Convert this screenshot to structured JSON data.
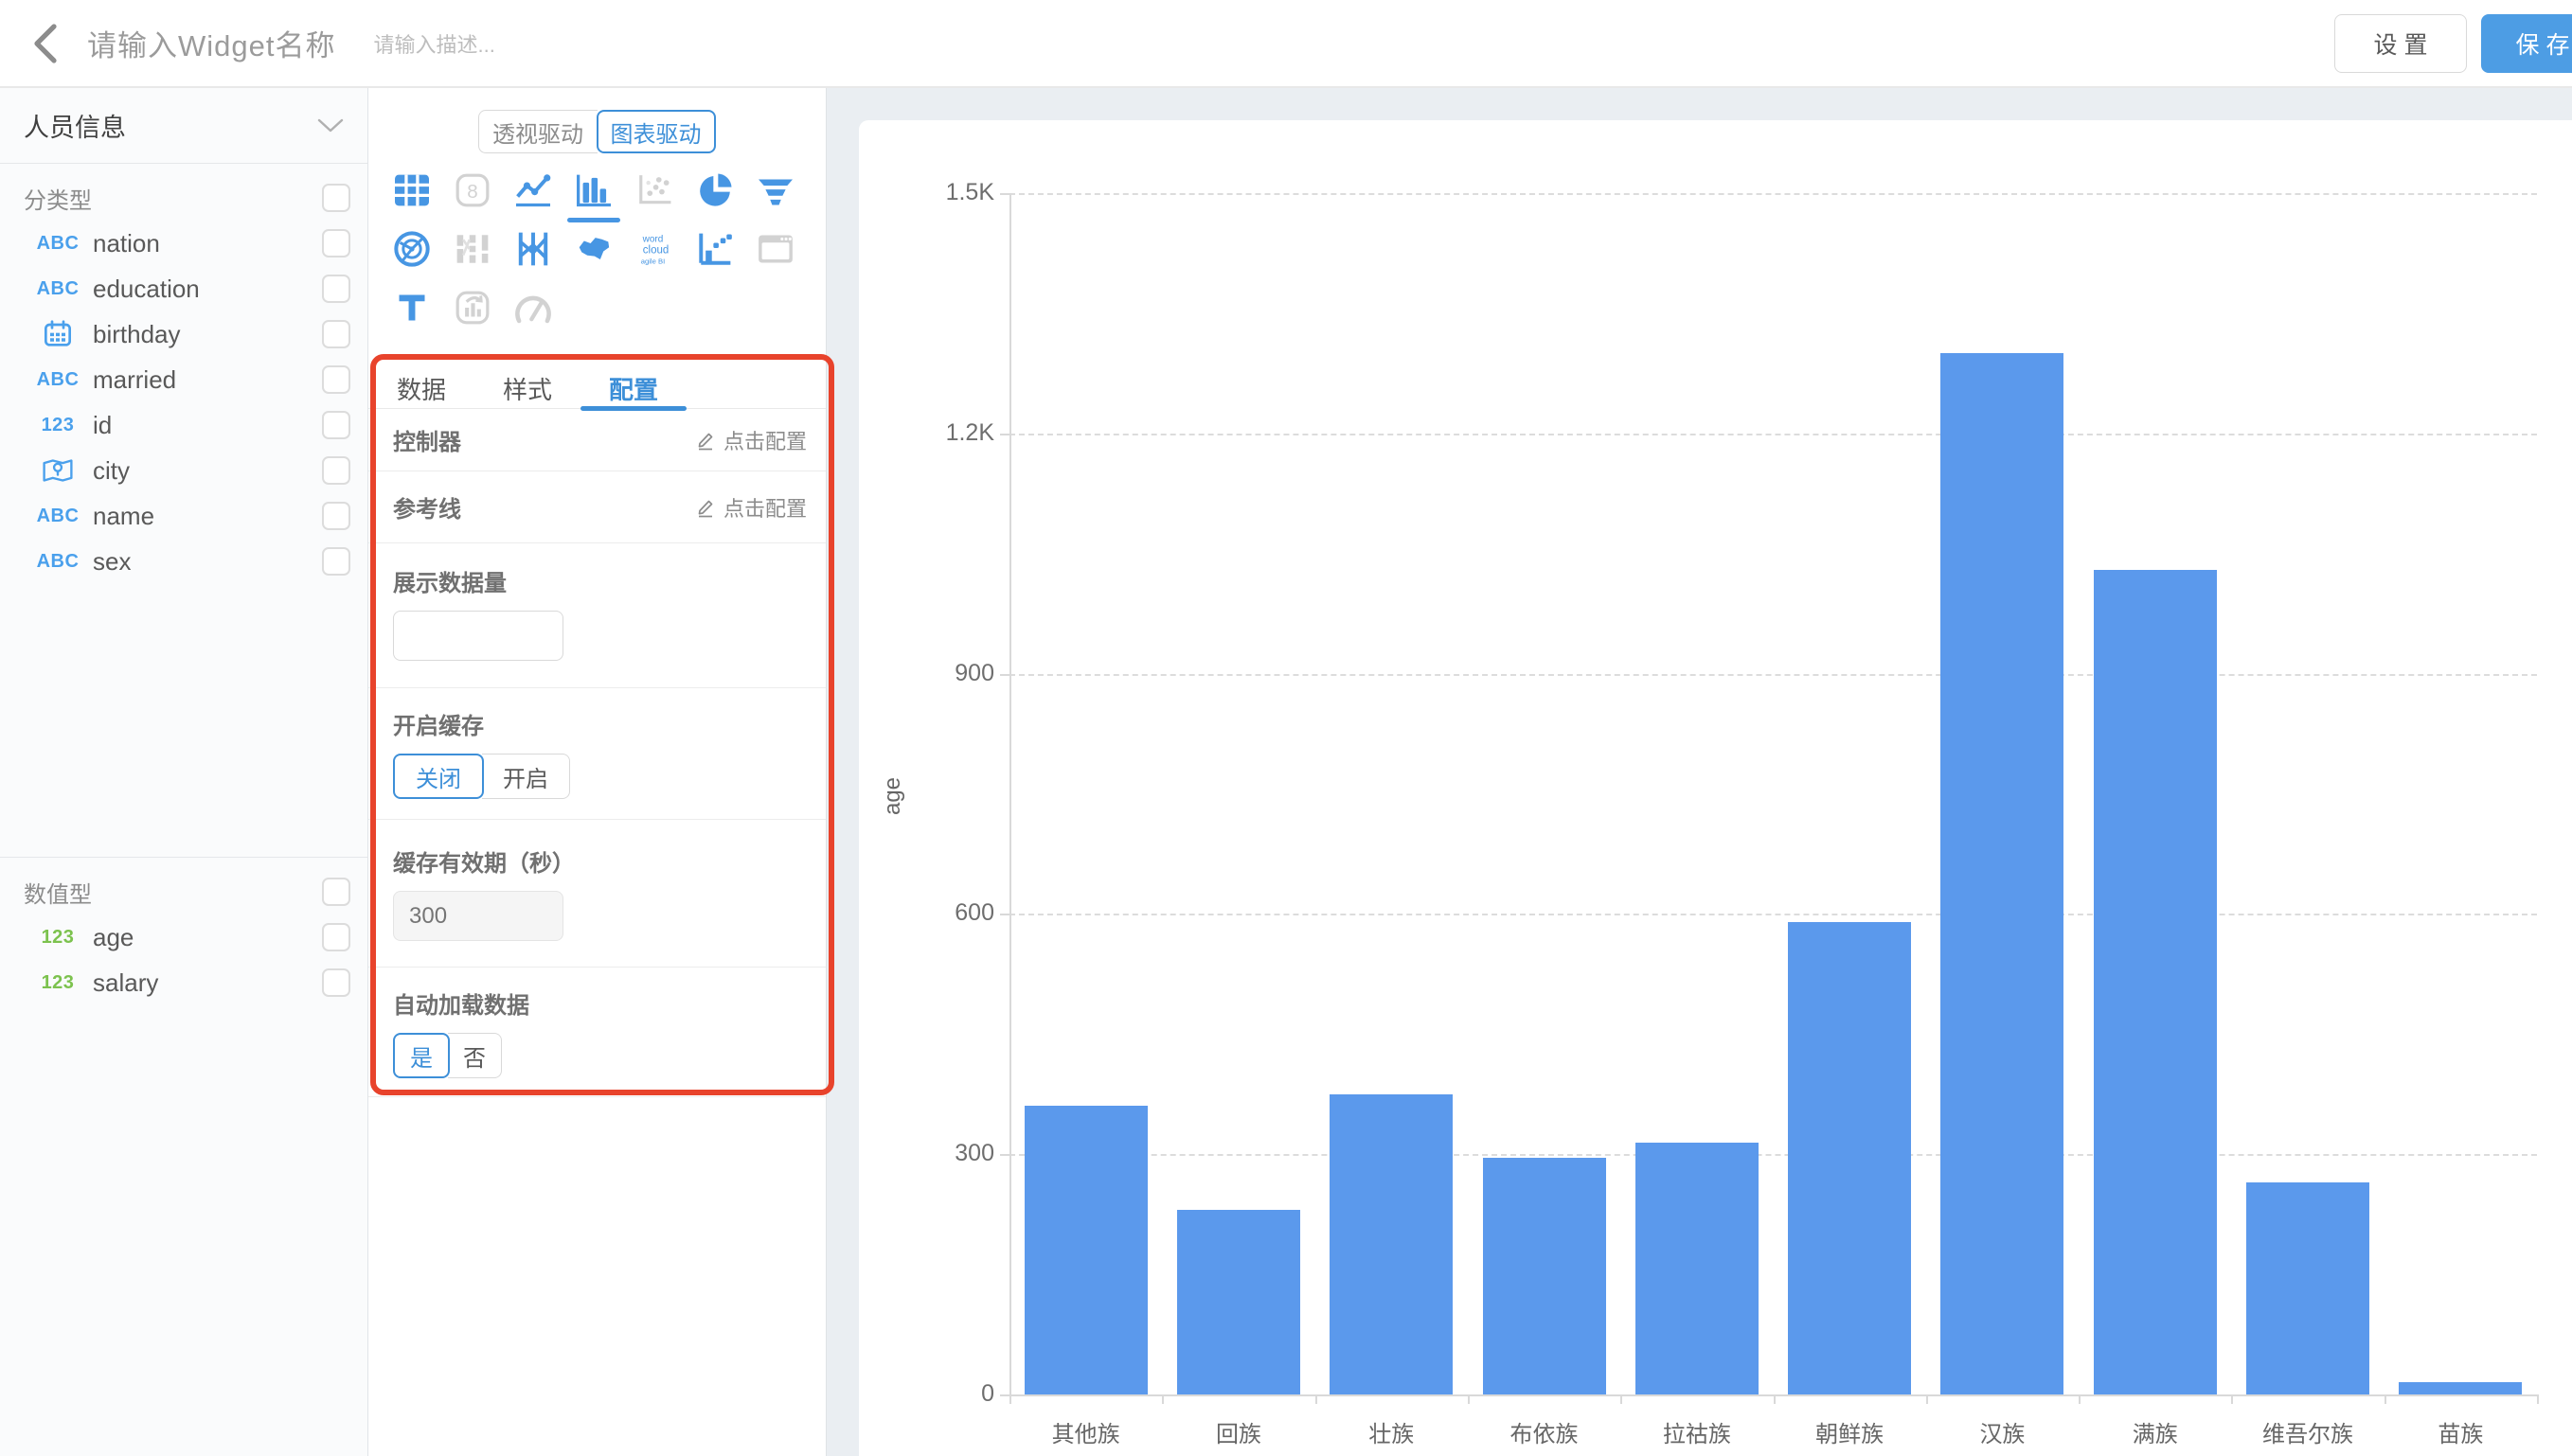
{
  "header": {
    "title_placeholder": "请输入Widget名称",
    "desc_placeholder": "请输入描述...",
    "settings_label": "设 置",
    "save_label": "保 存"
  },
  "sidebar": {
    "dataset": "人员信息",
    "groups": [
      {
        "label": "分类型",
        "fields": [
          {
            "badge": "ABC",
            "name": "nation"
          },
          {
            "badge": "ABC",
            "name": "education"
          },
          {
            "badge": "calendar-icon",
            "name": "birthday"
          },
          {
            "badge": "ABC",
            "name": "married"
          },
          {
            "badge": "123",
            "name": "id"
          },
          {
            "badge": "map-icon",
            "name": "city"
          },
          {
            "badge": "ABC",
            "name": "name"
          },
          {
            "badge": "ABC",
            "name": "sex"
          }
        ]
      },
      {
        "label": "数值型",
        "fields": [
          {
            "badge": "123",
            "name": "age"
          },
          {
            "badge": "123",
            "name": "salary"
          }
        ]
      }
    ]
  },
  "panel": {
    "mode_toggle": {
      "options": [
        "透视驱动",
        "图表驱动"
      ],
      "selected": "图表驱动"
    },
    "chart_types": [
      {
        "name": "table",
        "state": "enabled"
      },
      {
        "name": "scorecard",
        "state": "disabled"
      },
      {
        "name": "line",
        "state": "enabled"
      },
      {
        "name": "bar",
        "state": "selected"
      },
      {
        "name": "scatter",
        "state": "disabled"
      },
      {
        "name": "pie",
        "state": "enabled"
      },
      {
        "name": "funnel",
        "state": "enabled"
      },
      {
        "name": "radar",
        "state": "enabled"
      },
      {
        "name": "sankey",
        "state": "disabled"
      },
      {
        "name": "parallel",
        "state": "enabled"
      },
      {
        "name": "map",
        "state": "enabled"
      },
      {
        "name": "wordcloud",
        "state": "enabled"
      },
      {
        "name": "waterfall",
        "state": "enabled"
      },
      {
        "name": "iframe",
        "state": "disabled"
      },
      {
        "name": "text",
        "state": "enabled"
      },
      {
        "name": "richtext",
        "state": "disabled"
      },
      {
        "name": "gauge",
        "state": "disabled"
      }
    ],
    "tabs": {
      "items": [
        "数据",
        "样式",
        "配置"
      ],
      "active": "配置"
    },
    "config": {
      "controller": {
        "label": "控制器",
        "action": "点击配置"
      },
      "reference_line": {
        "label": "参考线",
        "action": "点击配置"
      },
      "display_count": {
        "label": "展示数据量",
        "value": ""
      },
      "cache": {
        "label": "开启缓存",
        "options": [
          "关闭",
          "开启"
        ],
        "selected": "关闭"
      },
      "cache_expiry": {
        "label": "缓存有效期（秒）",
        "placeholder": "300",
        "disabled": true
      },
      "auto_load": {
        "label": "自动加载数据",
        "options": [
          "是",
          "否"
        ],
        "selected": "是"
      }
    }
  },
  "chart_data": {
    "type": "bar",
    "categories": [
      "其他族",
      "回族",
      "壮族",
      "布依族",
      "拉祜族",
      "朝鲜族",
      "汉族",
      "满族",
      "维吾尔族",
      "苗族"
    ],
    "values": [
      360,
      230,
      375,
      295,
      315,
      590,
      1300,
      1030,
      265,
      15
    ],
    "title": "",
    "xlabel": "",
    "ylabel": "age",
    "ylim": [
      0,
      1500
    ],
    "yticks": [
      0,
      300,
      600,
      900,
      1200,
      1500
    ],
    "ytick_labels": [
      "0",
      "300",
      "600",
      "900",
      "1.2K",
      "1.5K"
    ],
    "grid": "horizontal-dashed",
    "legend": "none",
    "bar_color": "#5b99ec"
  },
  "annotation": {
    "type": "highlight-box",
    "color": "#e8432c"
  },
  "colors": {
    "accent_blue": "#3d8fd8",
    "icon_blue": "#4796e3",
    "bar_blue": "#5b99ec",
    "save_blue": "#4d9de4",
    "badge_green": "#7cc24e",
    "highlight_red": "#e8432c",
    "workspace_bg": "#eaeef2"
  }
}
